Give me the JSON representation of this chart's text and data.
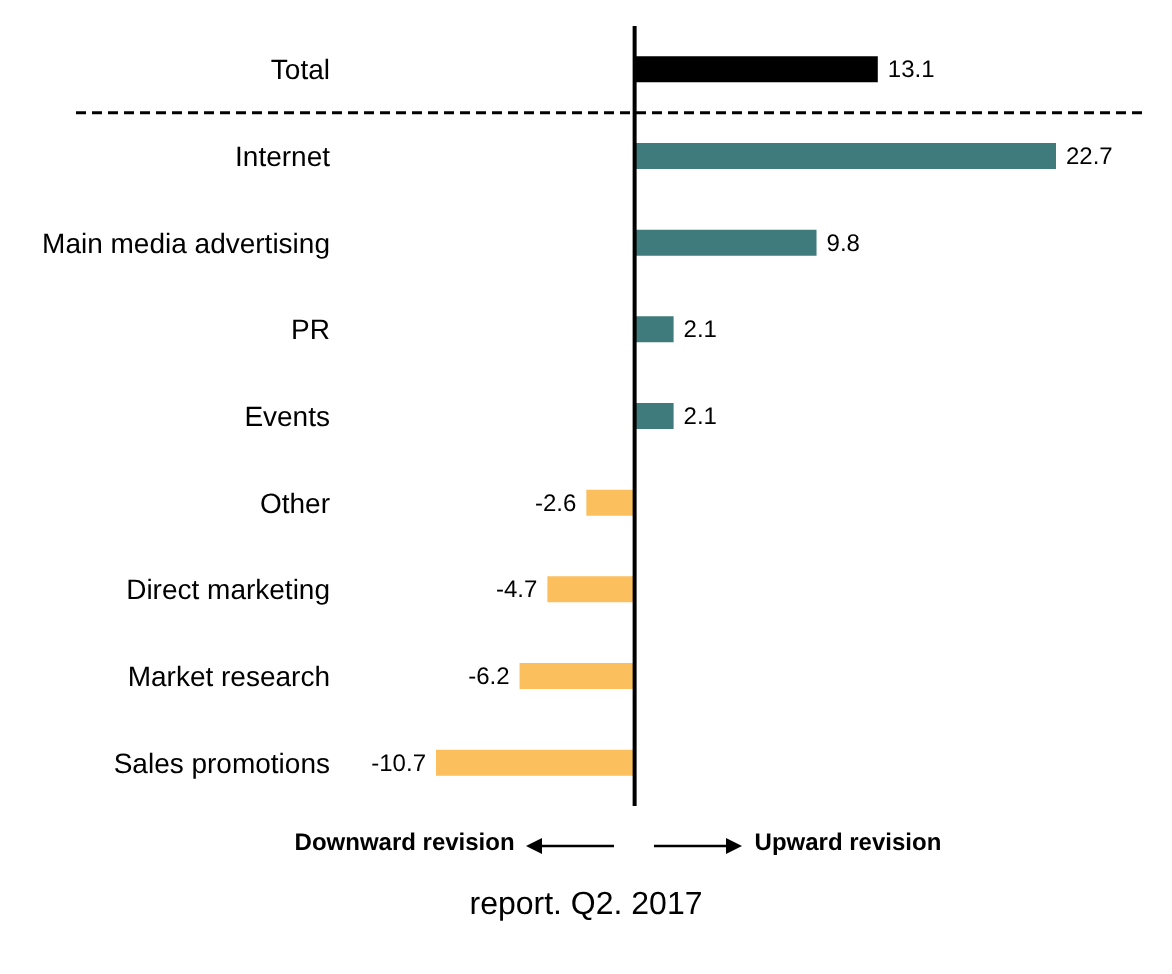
{
  "chart_data": {
    "type": "bar",
    "orientation": "horizontal",
    "categories": [
      "Total",
      "Internet",
      "Main media advertising",
      "PR",
      "Events",
      "Other",
      "Direct marketing",
      "Market research",
      "Sales promotions"
    ],
    "values": [
      13.1,
      22.7,
      9.8,
      2.1,
      2.1,
      -2.6,
      -4.7,
      -6.2,
      -10.7
    ],
    "colors": [
      "#000000",
      "#3f7b7d",
      "#3f7b7d",
      "#3f7b7d",
      "#3f7b7d",
      "#fbbf5e",
      "#fbbf5e",
      "#fbbf5e",
      "#fbbf5e"
    ],
    "data_labels": true,
    "ref_lines": [
      {
        "axis": "x",
        "value": 0,
        "color": "#000000"
      }
    ],
    "annotations": [
      "Downward revision",
      "Upward revision",
      "report. Q2. 2017"
    ]
  }
}
